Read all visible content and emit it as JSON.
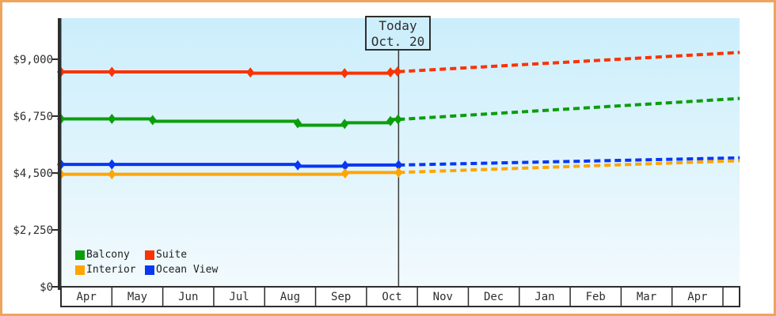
{
  "today": {
    "line1": "Today",
    "line2": "Oct. 20"
  },
  "legend": {
    "rows": [
      [
        {
          "label": "Balcony",
          "color": "#0b9e0b"
        },
        {
          "label": "Suite",
          "color": "#f93305"
        }
      ],
      [
        {
          "label": "Interior",
          "color": "#ffa502"
        },
        {
          "label": "Ocean View",
          "color": "#0837f2"
        }
      ]
    ]
  },
  "chart_data": {
    "type": "line",
    "title": "",
    "xlabel": "",
    "ylabel": "",
    "x_axis": {
      "categories": [
        "Apr",
        "May",
        "Jun",
        "Jul",
        "Aug",
        "Sep",
        "Oct",
        "Nov",
        "Dec",
        "Jan",
        "Feb",
        "Mar",
        "Apr"
      ],
      "month_index_range": [
        0,
        13.33
      ]
    },
    "y_axis": {
      "tick_labels": [
        "$0",
        "$2,250",
        "$4,500",
        "$6,750",
        "$9,000"
      ],
      "tick_values": [
        0,
        2250,
        4500,
        6750,
        9000
      ],
      "ylim": [
        0,
        9700
      ]
    },
    "grid": false,
    "legend_position": "bottom-left-inside",
    "today_marker": {
      "label": "Today Oct. 20",
      "month_index": 6.63
    },
    "series": [
      {
        "name": "Suite",
        "color": "#f93305",
        "step_events": [
          [
            0,
            8500
          ],
          [
            3.72,
            8450
          ],
          [
            6.47,
            8510
          ]
        ],
        "marker_x": [
          0,
          1,
          3.72,
          5.57,
          6.47,
          6.61
        ],
        "projection": {
          "start": [
            6.63,
            8510
          ],
          "end": [
            13.33,
            9270
          ]
        }
      },
      {
        "name": "Balcony",
        "color": "#0b9e0b",
        "step_events": [
          [
            0,
            6640
          ],
          [
            1.8,
            6545
          ],
          [
            4.65,
            6390
          ],
          [
            5.57,
            6490
          ],
          [
            6.47,
            6620
          ]
        ],
        "marker_x": [
          0,
          1,
          1.8,
          4.65,
          5.57,
          6.47,
          6.62
        ],
        "projection": {
          "start": [
            6.63,
            6620
          ],
          "end": [
            13.33,
            7450
          ]
        }
      },
      {
        "name": "Ocean View",
        "color": "#0837f2",
        "step_events": [
          [
            0,
            4840
          ],
          [
            4.65,
            4770
          ],
          [
            5.58,
            4815
          ]
        ],
        "marker_x": [
          0,
          1,
          4.65,
          5.58,
          6.63
        ],
        "projection": {
          "start": [
            6.63,
            4815
          ],
          "end": [
            13.33,
            5100
          ]
        }
      },
      {
        "name": "Interior",
        "color": "#ffa502",
        "step_events": [
          [
            0,
            4450
          ],
          [
            5.58,
            4520
          ]
        ],
        "marker_x": [
          0,
          1,
          5.58,
          6.63
        ],
        "projection": {
          "start": [
            6.63,
            4520
          ],
          "end": [
            13.33,
            4990
          ]
        }
      }
    ]
  },
  "style_colors": {
    "frame_border": "#eda55e",
    "plot_gradient_top": "#cbeefb",
    "plot_gradient_bottom": "#f2fafd",
    "axis": "#2e2e2e",
    "today_line": "#3a3a3a",
    "text": "#2e2e2e",
    "band_fill": "#ffffff"
  }
}
